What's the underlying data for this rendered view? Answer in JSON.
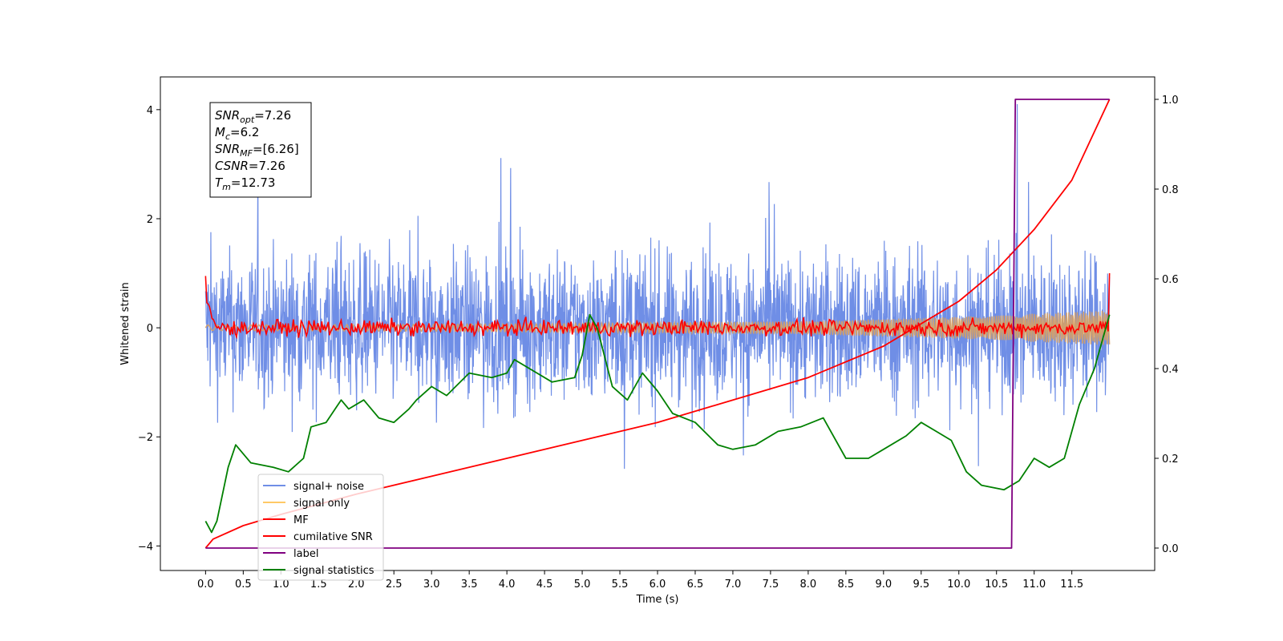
{
  "chart_data": {
    "type": "line",
    "xlabel": "Time (s)",
    "ylabel": "Whitened strain",
    "xlim": [
      -0.6,
      12.6
    ],
    "ylim": [
      -4.45,
      4.6
    ],
    "y2lim": [
      -0.05,
      1.05
    ],
    "xticks": [
      "0.0",
      "0.5",
      "1.0",
      "1.5",
      "2.0",
      "2.5",
      "3.0",
      "3.5",
      "4.0",
      "4.5",
      "5.0",
      "5.5",
      "6.0",
      "6.5",
      "7.0",
      "7.5",
      "8.0",
      "8.5",
      "9.0",
      "9.5",
      "10.0",
      "10.5",
      "11.0",
      "11.5"
    ],
    "yticks": [
      "−4",
      "−2",
      "0",
      "2",
      "4"
    ],
    "y2ticks": [
      "0.0",
      "0.2",
      "0.4",
      "0.6",
      "0.8",
      "1.0"
    ],
    "info_box": {
      "lines": [
        {
          "symbol": "SNR",
          "sub": "opt",
          "text": "=7.26"
        },
        {
          "symbol": "M",
          "sub": "c",
          "text": "=6.2"
        },
        {
          "symbol": "SNR",
          "sub": "MF",
          "text": "=[6.26]"
        },
        {
          "symbol": "CSNR",
          "sub": "",
          "text": "=7.26"
        },
        {
          "symbol": "T",
          "sub": "m",
          "text": "=12.73"
        }
      ]
    },
    "legend": {
      "position": "lower-left",
      "entries": [
        {
          "label": "signal+ noise",
          "color": "#6f8ee6"
        },
        {
          "label": "signal only",
          "color": "#ffc966"
        },
        {
          "label": "MF",
          "color": "#ff0000"
        },
        {
          "label": "cumilative SNR",
          "color": "#ff0000"
        },
        {
          "label": "label",
          "color": "#800080"
        },
        {
          "label": "signal statistics",
          "color": "#008000"
        }
      ]
    },
    "series": [
      {
        "name": "signal+ noise",
        "axis": "left",
        "color": "#6f8ee6",
        "x_range": [
          0.0,
          12.0
        ],
        "amplitude_approx": 4.1
      },
      {
        "name": "signal only",
        "axis": "left",
        "color": "#d8a060",
        "x": [
          0,
          4,
          8,
          10,
          12
        ],
        "envelope": [
          0.05,
          0.07,
          0.12,
          0.2,
          0.32
        ]
      },
      {
        "name": "MF",
        "axis": "left",
        "color": "#ff0000",
        "x_range": [
          0.0,
          12.0
        ],
        "amplitude_approx": 0.25,
        "start_value": 0.95,
        "end_value": 1.0
      },
      {
        "name": "cumilative SNR",
        "axis": "right",
        "color": "#ff0000",
        "x": [
          0,
          0.1,
          0.5,
          1,
          2,
          3,
          4,
          5,
          6,
          7,
          8,
          9,
          10,
          10.5,
          11,
          11.5,
          12
        ],
        "y": [
          0.0,
          0.02,
          0.05,
          0.075,
          0.12,
          0.16,
          0.2,
          0.24,
          0.28,
          0.33,
          0.38,
          0.45,
          0.55,
          0.62,
          0.71,
          0.82,
          1.0
        ]
      },
      {
        "name": "label",
        "axis": "right",
        "color": "#800080",
        "x": [
          0,
          10.7,
          10.75,
          12
        ],
        "y": [
          0,
          0,
          1,
          1
        ]
      },
      {
        "name": "signal statistics",
        "axis": "right",
        "color": "#008000",
        "x": [
          0,
          0.08,
          0.15,
          0.3,
          0.4,
          0.6,
          0.9,
          1.1,
          1.3,
          1.4,
          1.6,
          1.8,
          1.9,
          2.1,
          2.3,
          2.5,
          2.7,
          2.8,
          3.0,
          3.2,
          3.5,
          3.8,
          4.0,
          4.1,
          4.3,
          4.6,
          4.9,
          5.0,
          5.1,
          5.2,
          5.4,
          5.6,
          5.8,
          6.0,
          6.2,
          6.5,
          6.8,
          7.0,
          7.3,
          7.6,
          7.9,
          8.2,
          8.5,
          8.8,
          9.0,
          9.3,
          9.5,
          9.7,
          9.9,
          10.1,
          10.3,
          10.6,
          10.8,
          11.0,
          11.2,
          11.4,
          11.6,
          11.8,
          12.0
        ],
        "y": [
          0.06,
          0.035,
          0.06,
          0.18,
          0.23,
          0.19,
          0.18,
          0.17,
          0.2,
          0.27,
          0.28,
          0.33,
          0.31,
          0.33,
          0.29,
          0.28,
          0.31,
          0.33,
          0.36,
          0.34,
          0.39,
          0.38,
          0.39,
          0.42,
          0.4,
          0.37,
          0.38,
          0.43,
          0.52,
          0.49,
          0.36,
          0.33,
          0.39,
          0.35,
          0.3,
          0.28,
          0.23,
          0.22,
          0.23,
          0.26,
          0.27,
          0.29,
          0.2,
          0.2,
          0.22,
          0.25,
          0.28,
          0.26,
          0.24,
          0.17,
          0.14,
          0.13,
          0.15,
          0.2,
          0.18,
          0.2,
          0.32,
          0.4,
          0.52
        ]
      }
    ]
  }
}
